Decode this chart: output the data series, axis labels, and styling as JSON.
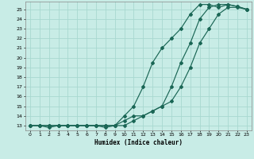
{
  "xlabel": "Humidex (Indice chaleur)",
  "ylabel": "",
  "bg_color": "#c8ece6",
  "grid_color": "#a8d8d0",
  "line_color": "#1a6655",
  "xlim": [
    -0.5,
    23.5
  ],
  "ylim": [
    12.5,
    25.8
  ],
  "xticks": [
    0,
    1,
    2,
    3,
    4,
    5,
    6,
    7,
    8,
    9,
    10,
    11,
    12,
    13,
    14,
    15,
    16,
    17,
    18,
    19,
    20,
    21,
    22,
    23
  ],
  "yticks": [
    13,
    14,
    15,
    16,
    17,
    18,
    19,
    20,
    21,
    22,
    23,
    24,
    25
  ],
  "line1_x": [
    0,
    1,
    2,
    3,
    4,
    5,
    6,
    7,
    8,
    9,
    10,
    11,
    12,
    13,
    14,
    15,
    16,
    17,
    18,
    19,
    20,
    21,
    22,
    23
  ],
  "line1_y": [
    13,
    13,
    13,
    13,
    13,
    13,
    13,
    13,
    13,
    13,
    14,
    15,
    17,
    19.5,
    21,
    22,
    23,
    24.5,
    25.5,
    25.5,
    25.2,
    25.5,
    25.3,
    25
  ],
  "line2_x": [
    0,
    1,
    2,
    3,
    4,
    5,
    6,
    7,
    8,
    9,
    10,
    11,
    12,
    13,
    14,
    15,
    16,
    17,
    18,
    19,
    20,
    21,
    22,
    23
  ],
  "line2_y": [
    13,
    13,
    12.8,
    13,
    13,
    13,
    13,
    13,
    12.8,
    13,
    13,
    13.5,
    14,
    14.5,
    15,
    17,
    19.5,
    21.5,
    24,
    25.2,
    25.5,
    25.5,
    25.3,
    25
  ],
  "line3_x": [
    0,
    1,
    2,
    3,
    4,
    5,
    6,
    7,
    8,
    9,
    10,
    11,
    12,
    13,
    14,
    15,
    16,
    17,
    18,
    19,
    20,
    21,
    22,
    23
  ],
  "line3_y": [
    13,
    13,
    13,
    13,
    13,
    13,
    13,
    13,
    13,
    13,
    13.5,
    14,
    14,
    14.5,
    15,
    15.5,
    17,
    19,
    21.5,
    23,
    24.5,
    25.2,
    25.2,
    25
  ]
}
